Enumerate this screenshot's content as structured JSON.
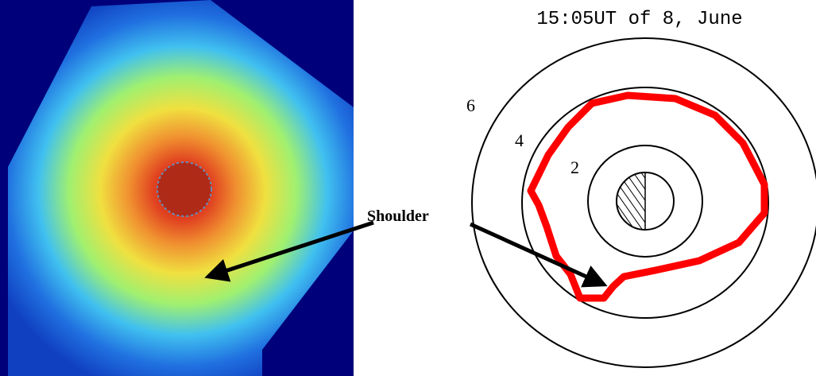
{
  "right_panel": {
    "title": "15:05UT of 8, June",
    "ring_labels": [
      "6",
      "4",
      "2"
    ]
  },
  "annotation": {
    "label": "Shoulder"
  }
}
